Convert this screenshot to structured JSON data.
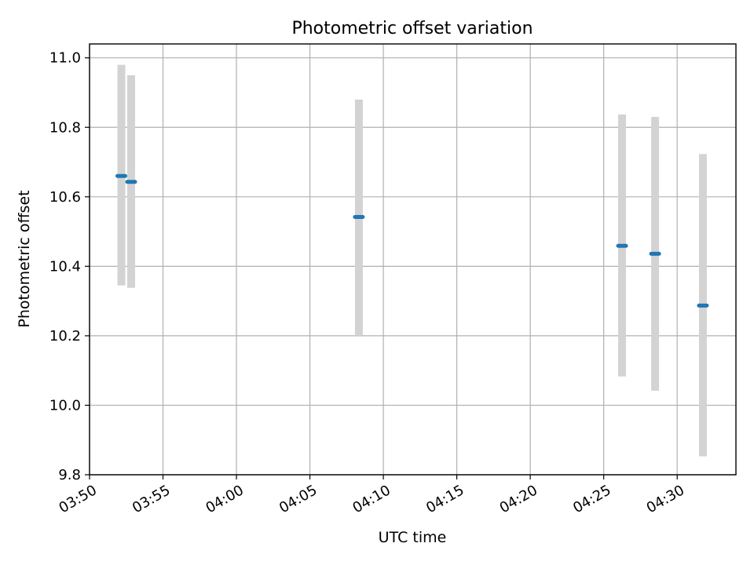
{
  "chart_data": {
    "type": "scatter",
    "title": "Photometric offset variation",
    "xlabel": "UTC time",
    "ylabel": "Photometric offset",
    "x_type": "time",
    "xlim": [
      "03:50:00",
      "04:34:00"
    ],
    "ylim": [
      9.8,
      11.04
    ],
    "grid": true,
    "x_ticks": [
      "03:50",
      "03:55",
      "04:00",
      "04:05",
      "04:10",
      "04:15",
      "04:20",
      "04:25",
      "04:30"
    ],
    "y_ticks": [
      "9.8",
      "10.0",
      "10.2",
      "10.4",
      "10.6",
      "10.8",
      "11.0"
    ],
    "series": [
      {
        "color": "#1f77b4",
        "error_bar_color": "#d3d3d3",
        "points": [
          {
            "x": "03:52:10",
            "y": 10.66,
            "ylow": 10.345,
            "yhigh": 10.98
          },
          {
            "x": "03:52:50",
            "y": 10.643,
            "ylow": 10.338,
            "yhigh": 10.95
          },
          {
            "x": "04:08:20",
            "y": 10.542,
            "ylow": 10.2,
            "yhigh": 10.88
          },
          {
            "x": "04:26:15",
            "y": 10.459,
            "ylow": 10.083,
            "yhigh": 10.837
          },
          {
            "x": "04:28:30",
            "y": 10.436,
            "ylow": 10.042,
            "yhigh": 10.83
          },
          {
            "x": "04:31:45",
            "y": 10.287,
            "ylow": 9.853,
            "yhigh": 10.723
          }
        ]
      }
    ]
  }
}
